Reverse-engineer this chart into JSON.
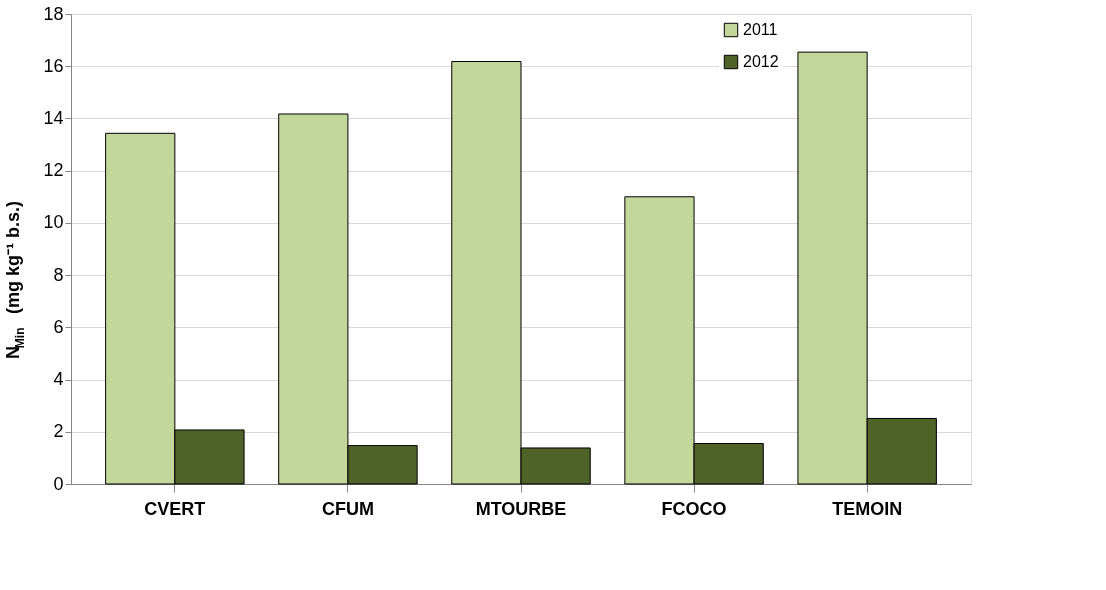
{
  "chart_data": {
    "type": "bar",
    "ylabel": "N$_{Min}$  (mg kg⁻¹ b.s.)",
    "categories": [
      "CVERT",
      "CFUM",
      "MTOURBE",
      "FCOCO",
      "TEMOIN"
    ],
    "series": [
      {
        "name": "2011",
        "color": "#c4d79b",
        "values": [
          13.43,
          14.17,
          16.18,
          11.0,
          16.54
        ]
      },
      {
        "name": "2012",
        "color": "#4f6228",
        "values": [
          2.07,
          1.47,
          1.38,
          1.55,
          2.51
        ]
      }
    ],
    "ylim": [
      0,
      18
    ],
    "yticks": [
      0,
      2,
      4,
      6,
      8,
      10,
      12,
      14,
      16,
      18
    ],
    "grid": "y",
    "legend": "top right"
  }
}
